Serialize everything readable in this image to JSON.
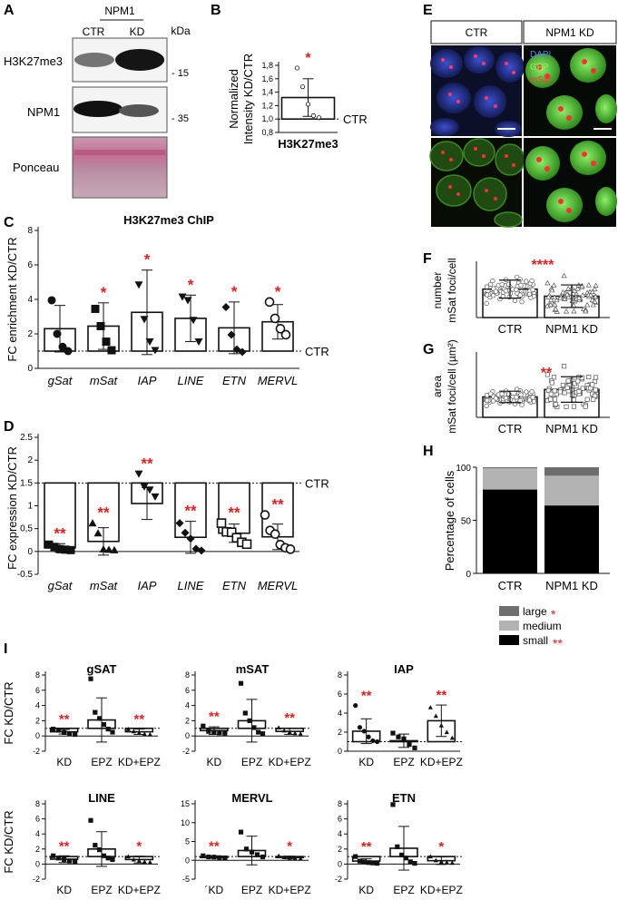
{
  "panels": {
    "A": {
      "label": "A",
      "condition_header": "NPM1",
      "lanes": [
        "CTR",
        "KD"
      ],
      "unit": "kDa",
      "rows": [
        {
          "name": "H3K27me3",
          "marker": "- 15"
        },
        {
          "name": "NPM1",
          "marker": "- 35"
        },
        {
          "name": "Ponceau",
          "marker": ""
        }
      ]
    },
    "E": {
      "label": "E",
      "columns": [
        "CTR",
        "NPM1 KD"
      ],
      "channels": [
        "DAPI",
        "GFP",
        "mSat"
      ],
      "channel_colors": [
        "#4a6cff",
        "#7ee05a",
        "#ff3030"
      ]
    }
  },
  "chart_data": [
    {
      "id": "B",
      "panel": "B",
      "type": "bar",
      "ylabel_lines": [
        "Normalized",
        "Intensity KD/CTR"
      ],
      "xlabel": "H3K27me3",
      "ref_label": "CTR",
      "categories": [
        "H3K27me3"
      ],
      "values": [
        1.32
      ],
      "error": [
        0.28
      ],
      "points": [
        [
          1.76,
          1.48,
          1.22,
          1.05,
          1.02
        ]
      ],
      "sig": [
        "*"
      ],
      "ylim": [
        0.8,
        1.8
      ],
      "yticks": [
        0.8,
        1.0,
        1.2,
        1.4,
        1.6,
        1.8
      ],
      "ytick_labels": [
        "0,8",
        "1,0",
        "1,2",
        "1,4",
        "1,6",
        "1,8"
      ],
      "refline": 1.0
    },
    {
      "id": "C",
      "panel": "C",
      "type": "bar",
      "title": "H3K27me3 ChIP",
      "ylabel_lines": [
        "FC enrichment KD/CTR"
      ],
      "ref_label": "CTR",
      "categories": [
        "gSat",
        "mSat",
        "IAP",
        "LINE",
        "ETN",
        "MERVL"
      ],
      "values": [
        2.3,
        2.45,
        3.25,
        2.9,
        2.35,
        2.7
      ],
      "error": [
        1.35,
        1.35,
        2.45,
        1.35,
        1.5,
        1.0
      ],
      "points": [
        [
          3.95,
          2.0,
          1.25,
          1.0
        ],
        [
          3.45,
          2.45,
          1.55,
          1.05
        ],
        [
          4.85,
          2.85,
          1.55,
          1.05
        ],
        [
          4.15,
          3.95,
          2.8,
          1.55
        ],
        [
          3.55,
          1.95,
          1.1,
          0.95
        ],
        [
          3.85,
          2.9,
          2.3,
          1.95
        ]
      ],
      "sig": [
        "",
        "*",
        "*",
        "*",
        "*",
        "*"
      ],
      "ylim": [
        0,
        8
      ],
      "yticks": [
        0,
        2,
        4,
        6,
        8
      ],
      "ytick_labels": [
        "0",
        "2",
        "4",
        "6",
        "8"
      ],
      "refline": 1.0
    },
    {
      "id": "D",
      "panel": "D",
      "type": "bar",
      "ylabel_lines": [
        "FC expression KD/CTR"
      ],
      "ref_label": "CTR",
      "categories": [
        "gSat",
        "mSat",
        "IAP",
        "LINE",
        "ETN",
        "MERVL"
      ],
      "values": [
        0.08,
        0.22,
        1.05,
        0.31,
        0.4,
        0.32
      ],
      "error": [
        0.09,
        0.3,
        0.35,
        0.35,
        0.2,
        0.28
      ],
      "points": [
        [
          0.15,
          0.1,
          0.05,
          0.04,
          0.03
        ],
        [
          0.62,
          0.4,
          0.05,
          0.04,
          0.03
        ],
        [
          1.7,
          1.42,
          1.35,
          1.2
        ],
        [
          0.62,
          0.41,
          0.28,
          0.06,
          0.02
        ],
        [
          0.62,
          0.43,
          0.42,
          0.3,
          0.2,
          0.16
        ],
        [
          0.8,
          0.46,
          0.38,
          0.15,
          0.08,
          0.05
        ]
      ],
      "sig": [
        "**",
        "**",
        "**",
        "**",
        "**",
        "**"
      ],
      "ylim": [
        -0.5,
        2.5
      ],
      "yticks": [
        -0.5,
        0,
        0.5,
        1.0,
        1.5,
        2.0,
        2.5
      ],
      "ytick_labels": [
        "-0.5",
        "0",
        "0,5",
        "1",
        "1.5",
        "2",
        "2.5"
      ],
      "refline": 1.5
    },
    {
      "id": "F",
      "panel": "F",
      "type": "bar",
      "ylabel_lines": [
        "number",
        "mSat foci/cell"
      ],
      "categories": [
        "CTR",
        "NPM1 KD"
      ],
      "values": [
        10.1,
        7.6
      ],
      "error": [
        3.2,
        4.0
      ],
      "sig_text": "****",
      "ylim": [
        0,
        20
      ]
    },
    {
      "id": "G",
      "panel": "G",
      "type": "bar",
      "ylabel_lines": [
        "area",
        "mSat foci/cell (µm²)"
      ],
      "categories": [
        "CTR",
        "NPM1 KD"
      ],
      "values": [
        0.72,
        0.98
      ],
      "error": [
        0.2,
        0.45
      ],
      "sig_text": "**",
      "ylim": [
        0,
        2.3
      ]
    },
    {
      "id": "H",
      "panel": "H",
      "type": "bar",
      "stacked": true,
      "ylabel_lines": [
        "Percentage of cells"
      ],
      "categories": [
        "CTR",
        "NPM1 KD"
      ],
      "series": [
        {
          "name": "small",
          "values": [
            79,
            64
          ],
          "color": "#000000",
          "sig": "**"
        },
        {
          "name": "medium",
          "values": [
            20,
            28
          ],
          "color": "#b3b3b3",
          "sig": ""
        },
        {
          "name": "large",
          "values": [
            1,
            8
          ],
          "color": "#6e6e6e",
          "sig": "*"
        }
      ],
      "ylim": [
        0,
        100
      ],
      "yticks": [
        0,
        50,
        100
      ],
      "ytick_labels": [
        "0",
        "50",
        "100"
      ]
    },
    {
      "id": "I-gSAT",
      "panel": "I",
      "type": "bar",
      "title": "gSAT",
      "ylabel_lines": [
        "FC KD/CTR"
      ],
      "categories": [
        "KD",
        "EPZ",
        "KD+EPZ"
      ],
      "values": [
        0.55,
        2.1,
        0.55
      ],
      "error": [
        0.3,
        2.9,
        0.35
      ],
      "points": [
        [
          0.9,
          0.75,
          0.45,
          0.3,
          0.2
        ],
        [
          7.5,
          3.1,
          2.3,
          1.5,
          0.9,
          0.5
        ],
        [
          0.9,
          0.6,
          0.4,
          0.25,
          0.2
        ]
      ],
      "sig": [
        "**",
        "",
        "**"
      ],
      "ylim": [
        -2,
        8
      ],
      "yticks": [
        -2,
        0,
        2,
        4,
        6,
        8
      ],
      "ytick_labels": [
        "-2",
        "0",
        "2",
        "4",
        "6",
        "8"
      ],
      "refline": 1
    },
    {
      "id": "I-mSAT",
      "panel": "I",
      "type": "bar",
      "title": "mSAT",
      "ylabel_lines": [],
      "categories": [
        "KD",
        "EPZ",
        "KD+EPZ"
      ],
      "values": [
        0.7,
        2.0,
        0.6
      ],
      "error": [
        0.5,
        2.8,
        0.4
      ],
      "points": [
        [
          1.3,
          0.6,
          0.5,
          0.4,
          0.35
        ],
        [
          6.9,
          3.0,
          2.0,
          1.1,
          0.5,
          0.3
        ],
        [
          1.1,
          0.7,
          0.5,
          0.35,
          0.3
        ]
      ],
      "sig": [
        "**",
        "",
        "**"
      ],
      "ylim": [
        -2,
        8
      ],
      "yticks": [
        -2,
        0,
        2,
        4,
        6,
        8
      ],
      "ytick_labels": [
        "-2",
        "0",
        "2",
        "4",
        "6",
        "8"
      ],
      "refline": 1
    },
    {
      "id": "I-IAP",
      "panel": "I",
      "type": "bar",
      "title": "IAP",
      "ylabel_lines": [],
      "categories": [
        "KD",
        "EPZ",
        "KD+EPZ"
      ],
      "values": [
        2.1,
        1.1,
        3.2
      ],
      "error": [
        1.3,
        0.7,
        1.65
      ],
      "points": [
        [
          4.8,
          2.5,
          2.1,
          1.5,
          1.1,
          1.0
        ],
        [
          1.9,
          1.5,
          1.3,
          0.7,
          0.35
        ],
        [
          4.6,
          3.7,
          2.7,
          2.0,
          1.4
        ]
      ],
      "sig": [
        "**",
        "",
        "**"
      ],
      "ylim": [
        0,
        8
      ],
      "yticks": [
        0,
        2,
        4,
        6,
        8
      ],
      "ytick_labels": [
        "0",
        "2",
        "4",
        "6",
        "8"
      ],
      "refline": 1
    },
    {
      "id": "I-LINE",
      "panel": "I",
      "type": "bar",
      "title": "LINE",
      "ylabel_lines": [
        "FC KD/CTR"
      ],
      "categories": [
        "KD",
        "EPZ",
        "KD+EPZ"
      ],
      "values": [
        0.65,
        2.0,
        0.6
      ],
      "error": [
        0.45,
        2.3,
        0.45
      ],
      "points": [
        [
          1.1,
          0.8,
          0.6,
          0.4,
          0.3
        ],
        [
          5.8,
          2.5,
          1.9,
          1.1,
          0.8,
          0.6
        ],
        [
          1.0,
          0.6,
          0.45,
          0.3,
          0.25
        ]
      ],
      "sig": [
        "**",
        "",
        "*"
      ],
      "ylim": [
        -2,
        8
      ],
      "yticks": [
        -2,
        0,
        2,
        4,
        6,
        8
      ],
      "ytick_labels": [
        "-2",
        "0",
        "2",
        "4",
        "6",
        "8"
      ],
      "refline": 1
    },
    {
      "id": "I-MERVL",
      "panel": "I",
      "type": "bar",
      "title": "MERVL",
      "ylabel_lines": [],
      "categories": [
        "´KD",
        "EPZ",
        "KD+EPZ"
      ],
      "values": [
        0.85,
        2.6,
        0.75
      ],
      "error": [
        0.25,
        3.8,
        0.35
      ],
      "points": [
        [
          1.2,
          0.9,
          0.85,
          0.7,
          0.65
        ],
        [
          7.5,
          3.0,
          2.2,
          1.5,
          0.9
        ],
        [
          1.2,
          0.8,
          0.6,
          0.5,
          0.45
        ]
      ],
      "sig": [
        "**",
        "",
        "*"
      ],
      "ylim": [
        -5,
        15
      ],
      "yticks": [
        -5,
        0,
        5,
        10,
        15
      ],
      "ytick_labels": [
        "-5",
        "0",
        "5",
        "10",
        "15"
      ],
      "refline": 1
    },
    {
      "id": "I-ETN",
      "panel": "I",
      "type": "bar",
      "title": "ETN",
      "ylabel_lines": [],
      "categories": [
        "KD",
        "EPZ",
        "KD+EPZ"
      ],
      "values": [
        0.4,
        2.1,
        0.45
      ],
      "error": [
        0.3,
        2.9,
        0.5
      ],
      "points": [
        [
          1.0,
          0.4,
          0.3,
          0.2,
          0.15,
          0.1
        ],
        [
          7.9,
          2.3,
          1.2,
          0.8,
          0.3,
          0.1
        ],
        [
          1.0,
          0.5,
          0.3,
          0.2,
          0.15
        ]
      ],
      "sig": [
        "**",
        "",
        "*"
      ],
      "ylim": [
        -2,
        8
      ],
      "yticks": [
        -2,
        0,
        2,
        4,
        6,
        8
      ],
      "ytick_labels": [
        "-2",
        "0",
        "2",
        "4",
        "6",
        "8"
      ],
      "refline": 1
    }
  ]
}
